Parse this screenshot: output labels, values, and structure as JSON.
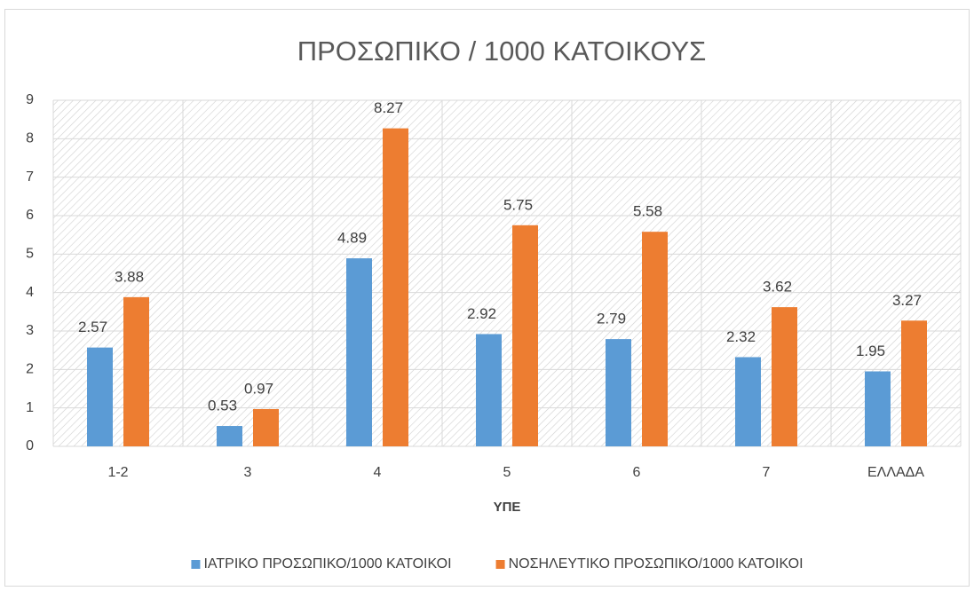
{
  "chart_data": {
    "type": "bar",
    "title": "ΠΡΟΣΩΠΙΚΟ / 1000 ΚΑΤΟΙΚΟΥΣ",
    "xlabel": "ΥΠΕ",
    "categories": [
      "1-2",
      "3",
      "4",
      "5",
      "6",
      "7",
      "ΕΛΛΑΔΑ"
    ],
    "series": [
      {
        "name": "ΙΑΤΡΙΚΟ ΠΡΟΣΩΠΙΚΟ/1000 ΚΑΤΟΙΚΟΙ",
        "color": "#5b9bd5",
        "values": [
          2.57,
          0.53,
          4.89,
          2.92,
          2.79,
          2.32,
          1.95
        ]
      },
      {
        "name": "ΝΟΣΗΛΕΥΤΙΚΟ ΠΡΟΣΩΠΙΚΟ/1000 ΚΑΤΟΙΚΟΙ",
        "color": "#ed7d31",
        "values": [
          3.88,
          0.97,
          8.27,
          5.75,
          5.58,
          3.62,
          3.27
        ]
      }
    ],
    "ylim": [
      0,
      9
    ],
    "yticks": [
      0,
      1,
      2,
      3,
      4,
      5,
      6,
      7,
      8,
      9
    ],
    "grid": true,
    "legend": "bottom"
  }
}
